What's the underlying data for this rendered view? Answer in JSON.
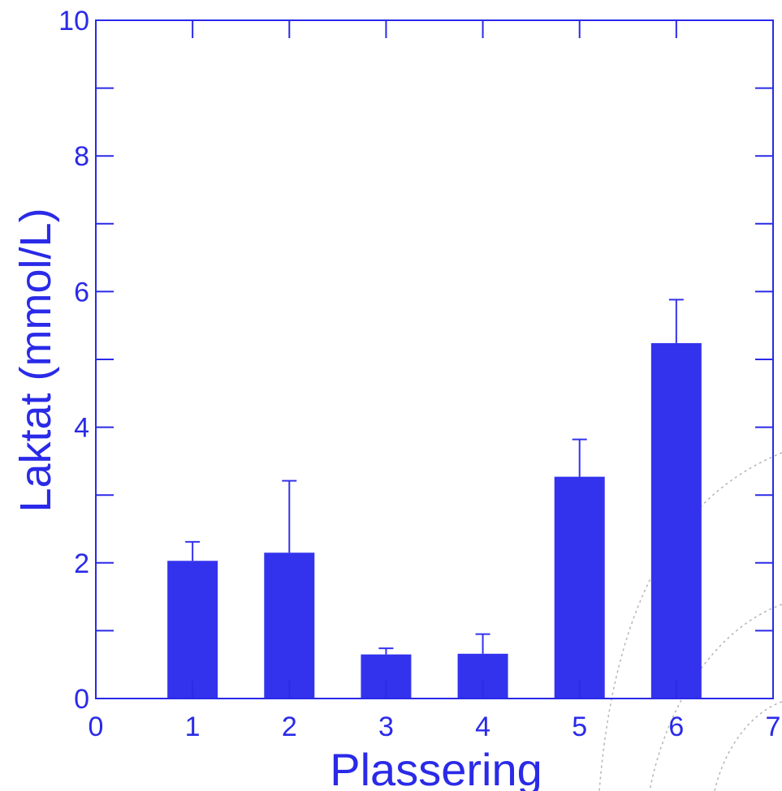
{
  "chart_data": {
    "type": "bar",
    "xlabel": "Plassering",
    "ylabel": "Laktat (mmol/L)",
    "xlim": [
      0,
      7
    ],
    "ylim": [
      0,
      10
    ],
    "x_ticks": [
      "0",
      "1",
      "2",
      "3",
      "4",
      "5",
      "6",
      "7"
    ],
    "y_ticks": [
      "0",
      "2",
      "4",
      "6",
      "8",
      "10"
    ],
    "categories": [
      1,
      2,
      3,
      4,
      5,
      6
    ],
    "values": [
      2.03,
      2.15,
      0.65,
      0.66,
      3.27,
      5.24
    ],
    "error_upper": [
      2.31,
      3.21,
      0.74,
      0.95,
      3.82,
      5.88
    ],
    "grid": false,
    "colors": {
      "bar": "#3333ee",
      "axis": "#2a2ae8",
      "background_arc": "#b0b0b0"
    }
  }
}
